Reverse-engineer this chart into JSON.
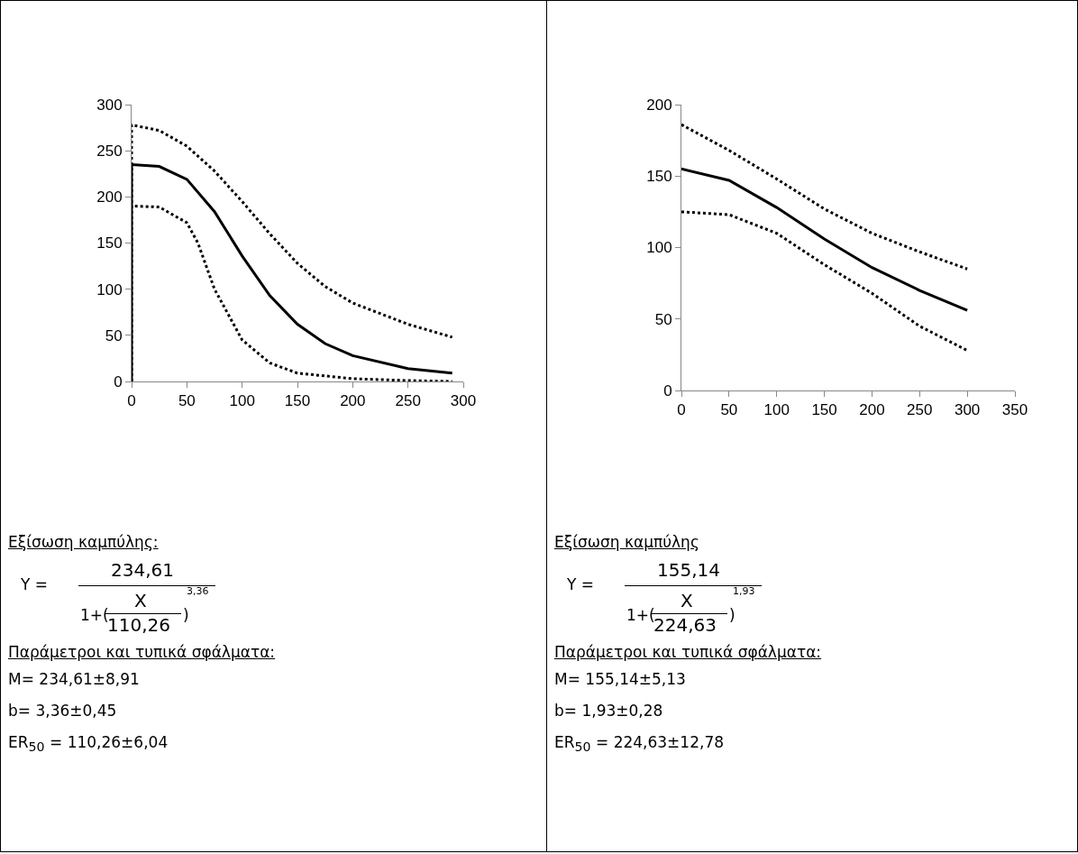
{
  "chart_data": [
    {
      "type": "line",
      "xlim": [
        0,
        300
      ],
      "xticks": [
        0,
        50,
        100,
        150,
        200,
        250,
        300
      ],
      "ylim": [
        0,
        300
      ],
      "yticks": [
        0,
        50,
        100,
        150,
        200,
        250,
        300
      ],
      "grid": false,
      "marker": "none",
      "series": [
        {
          "color": "#000000",
          "line_style": "solid",
          "x": [
            0,
            0,
            25,
            50,
            75,
            100,
            125,
            150,
            175,
            200,
            250,
            290
          ],
          "values": [
            0,
            235,
            233,
            219,
            184,
            136,
            93,
            62,
            41,
            28,
            14,
            9
          ]
        },
        {
          "color": "#000000",
          "line_style": "dotted",
          "x": [
            0,
            0,
            25,
            50,
            75,
            100,
            125,
            150,
            175,
            200,
            250,
            290
          ],
          "values": [
            0,
            278,
            272,
            255,
            228,
            195,
            160,
            128,
            103,
            85,
            62,
            48
          ]
        },
        {
          "color": "#000000",
          "line_style": "dotted",
          "x": [
            3,
            25,
            50,
            60,
            75,
            100,
            125,
            150,
            200,
            250,
            290
          ],
          "values": [
            190,
            189,
            172,
            150,
            100,
            45,
            20,
            9,
            3,
            1,
            0
          ]
        }
      ],
      "annotations": [
        "Εξίσωση καμπύλης:",
        "Y =",
        "234,61",
        "1+(",
        "X",
        "110,26",
        ")",
        "3,36",
        "Παράμετροι και τυπικά σφάλματα:",
        "M= 234,61±8,91",
        "b= 3,36±0,45",
        "ER$_{50}$ = 110,26±6,04"
      ]
    },
    {
      "type": "line",
      "xlim": [
        0,
        350
      ],
      "xticks": [
        0,
        50,
        100,
        150,
        200,
        250,
        300,
        350
      ],
      "ylim": [
        0,
        200
      ],
      "yticks": [
        0,
        50,
        100,
        150,
        200
      ],
      "grid": false,
      "marker": "none",
      "series": [
        {
          "color": "#000000",
          "line_style": "solid",
          "x": [
            0,
            50,
            100,
            150,
            200,
            250,
            300
          ],
          "values": [
            155,
            147,
            128,
            106,
            86,
            70,
            56
          ]
        },
        {
          "color": "#000000",
          "line_style": "dotted",
          "x": [
            0,
            50,
            100,
            150,
            200,
            250,
            300
          ],
          "values": [
            186,
            168,
            148,
            127,
            110,
            97,
            85
          ]
        },
        {
          "color": "#000000",
          "line_style": "dotted",
          "x": [
            0,
            50,
            100,
            150,
            200,
            250,
            300
          ],
          "values": [
            125,
            123,
            110,
            88,
            68,
            45,
            28
          ]
        }
      ],
      "annotations": [
        "Εξίσωση καμπύλης",
        "Y =",
        "155,14",
        "1+(",
        "X",
        "224,63",
        ")",
        "1,93",
        "Παράμετροι και τυπικά σφάλματα:",
        "M= 155,14±5,13",
        "b= 1,93±0,28",
        "ER$_{50}$ = 224,63±12,78"
      ]
    }
  ]
}
